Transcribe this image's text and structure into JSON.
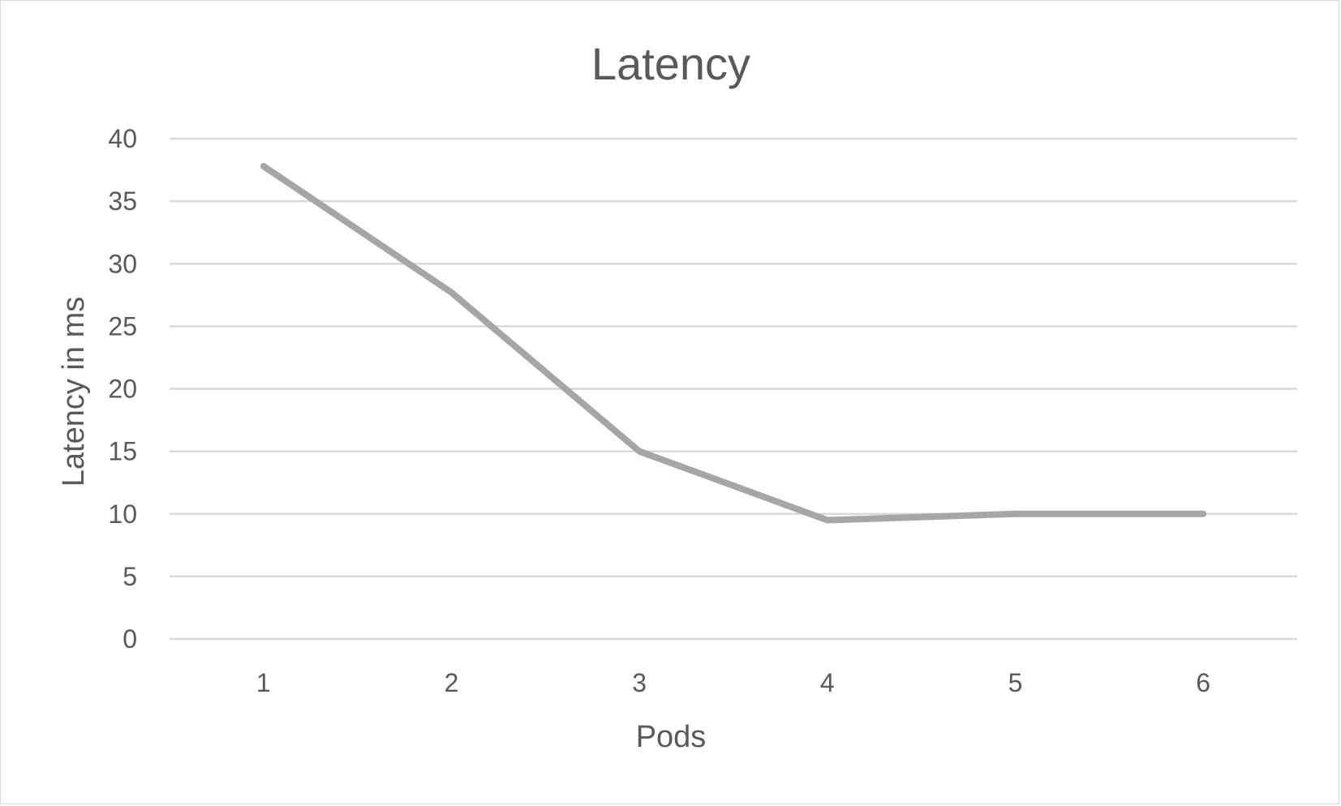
{
  "chart_data": {
    "type": "line",
    "title": "Latency",
    "xlabel": "Pods",
    "ylabel": "Latency in ms",
    "categories": [
      "1",
      "2",
      "3",
      "4",
      "5",
      "6"
    ],
    "series": [
      {
        "values": [
          37.8,
          27.7,
          15.0,
          9.5,
          10.0,
          10.0
        ]
      }
    ],
    "y_ticks": [
      "0",
      "5",
      "10",
      "15",
      "20",
      "25",
      "30",
      "35",
      "40"
    ],
    "ylim": [
      0,
      40
    ],
    "grid": true,
    "legend": "none",
    "colors": {
      "series": "#a6a6a6",
      "gridline": "#d9d9d9",
      "text": "#595959"
    }
  }
}
